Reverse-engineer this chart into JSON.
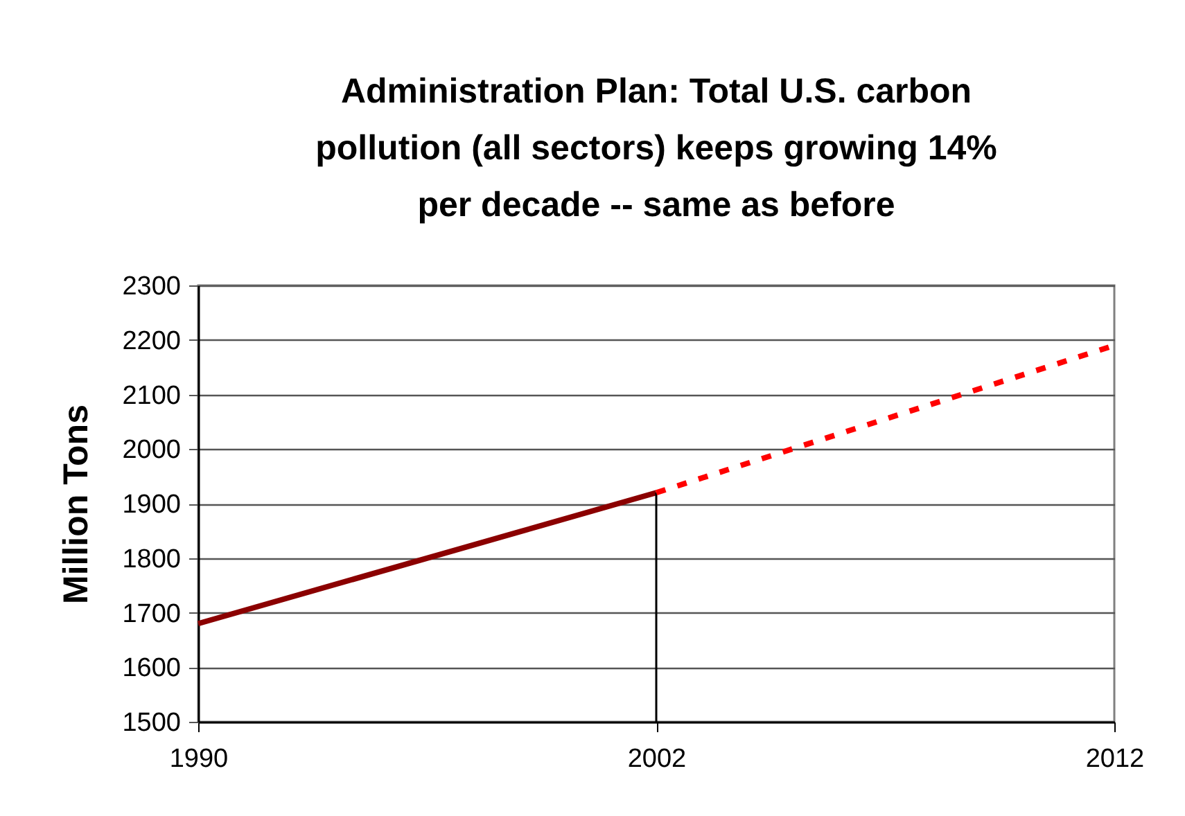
{
  "chart_data": {
    "type": "line",
    "title": "Administration Plan:  Total U.S. carbon pollution (all sectors) keeps growing 14% per decade -- same as before",
    "ylabel": "Million Tons",
    "categories": [
      "1990",
      "2002",
      "2012"
    ],
    "series": [
      {
        "color": "#8b0000",
        "line_style": "solid",
        "values": [
          1680,
          1920,
          null
        ]
      },
      {
        "color": "#ff0000",
        "line_style": "dashed",
        "values": [
          null,
          1920,
          2190
        ]
      }
    ],
    "ylim": [
      1500,
      2300
    ],
    "yticks": [
      1500,
      1600,
      1700,
      1800,
      1900,
      2000,
      2100,
      2200,
      2300
    ],
    "grid": "y",
    "marker": "none",
    "ref_lines": [
      {
        "axis": "x",
        "value": "2002"
      }
    ]
  }
}
